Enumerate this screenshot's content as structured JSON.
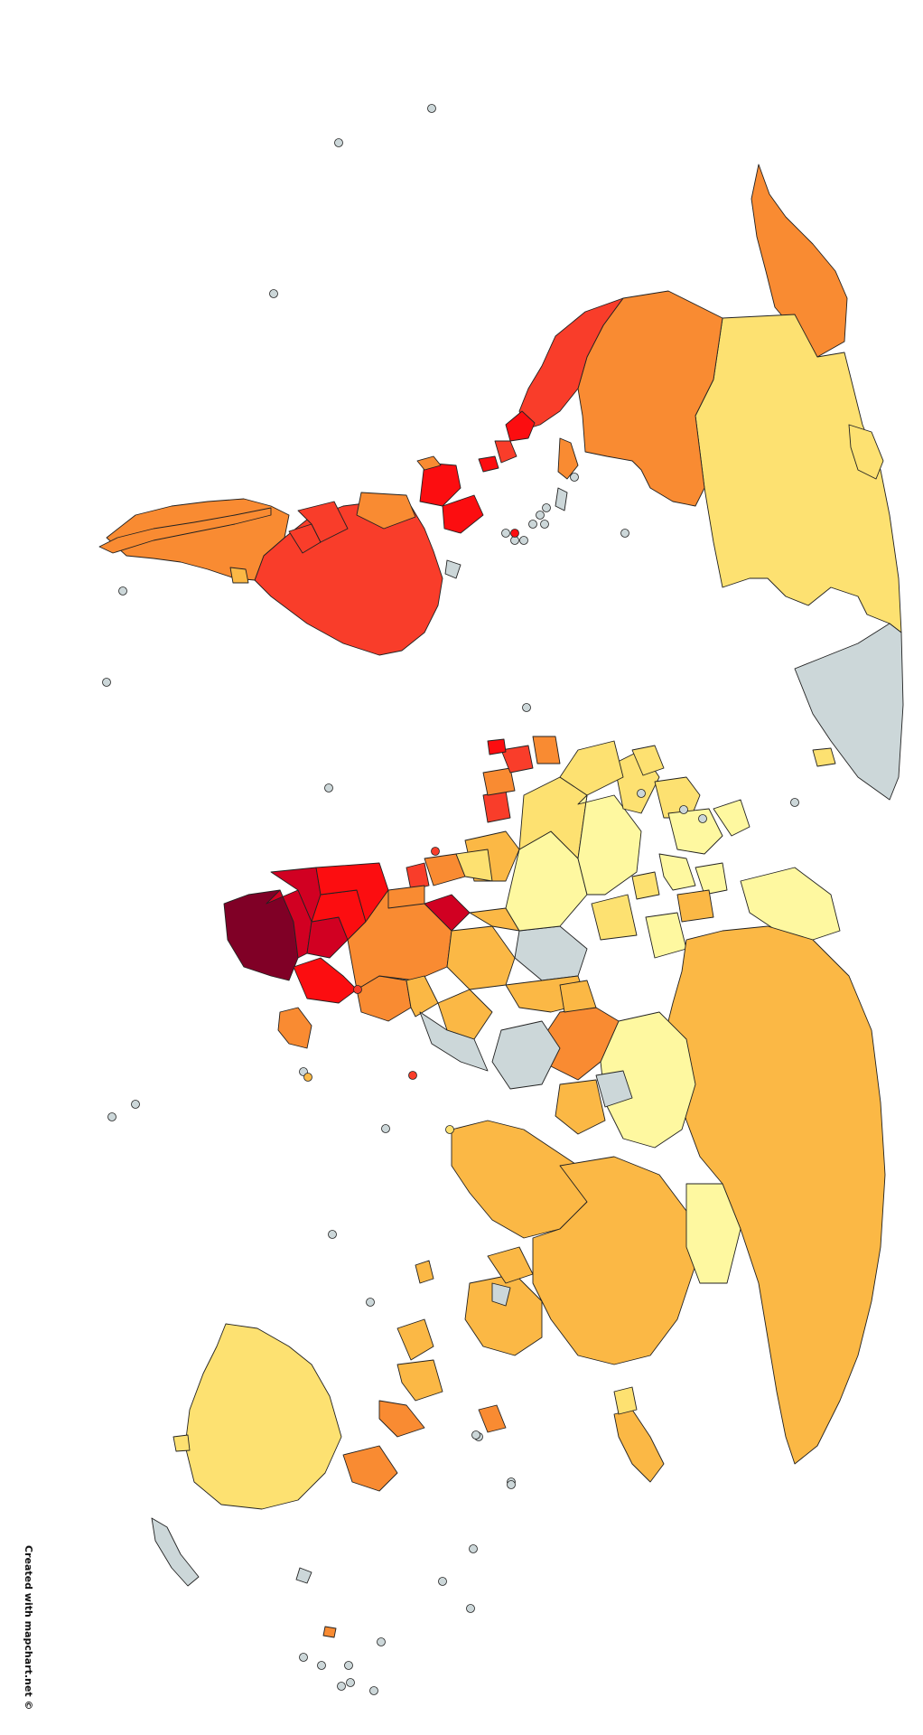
{
  "credit": "Created with mapchart.net ©",
  "palette": {
    "light_yellow": "#fef8a0",
    "yellow": "#fde171",
    "light_orange": "#fbb845",
    "orange": "#f98b32",
    "red_orange": "#f93d2a",
    "red": "#fc0d10",
    "dark_red": "#d10022",
    "maroon": "#800026",
    "no_data": "#ccd7d9",
    "border": "#222222",
    "background": "#ffffff"
  },
  "map": {
    "orientation": "world map rotated 90 degrees clockwise",
    "legend": "none shown"
  }
}
